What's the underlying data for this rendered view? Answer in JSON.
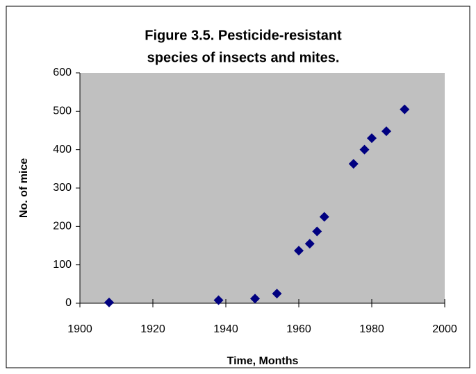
{
  "chart_data": {
    "type": "scatter",
    "title": [
      "Figure 3.5.  Pesticide-resistant",
      "species of insects and mites."
    ],
    "x_label": "Time, Months",
    "y_label": "No. of mice",
    "x": [
      1908,
      1938,
      1948,
      1954,
      1960,
      1963,
      1965,
      1967,
      1975,
      1978,
      1980,
      1984,
      1989
    ],
    "values": [
      2,
      8,
      12,
      25,
      137,
      155,
      187,
      225,
      363,
      400,
      430,
      448,
      505
    ],
    "color": "#000080",
    "xlim": [
      1900,
      2000
    ],
    "xticks": [
      1900,
      1920,
      1940,
      1960,
      1980,
      2000
    ],
    "ylim": [
      0,
      600
    ],
    "yticks": [
      0,
      100,
      200,
      300,
      400,
      500,
      600
    ],
    "grid": false
  }
}
